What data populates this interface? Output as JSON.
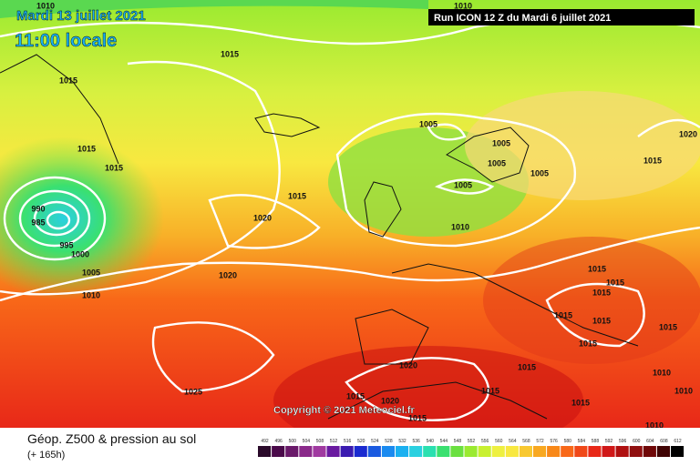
{
  "header": {
    "date": "Mardi 13 juillet 2021",
    "time": "11:00 locale",
    "run": "Run ICON 12 Z du Mardi 6 juillet 2021"
  },
  "copyright": "Copyright © 2021 Meteociel.fr",
  "footer": {
    "title": "Géop. Z500 & pression au sol",
    "lead": "(+ 165h)"
  },
  "isobar_labels": [
    1010,
    1015,
    1015,
    1015,
    1015,
    990,
    985,
    995,
    1000,
    1005,
    1010,
    1020,
    1015,
    1020,
    1005,
    1005,
    1005,
    1005,
    1005,
    1010,
    1010,
    1015,
    1020,
    1015,
    1015,
    1015,
    1015,
    1015,
    1015,
    1015,
    1015,
    1020,
    1015,
    1020,
    1015,
    1015,
    1015,
    1025,
    1010,
    1010,
    1010
  ],
  "colorbar": {
    "values": [
      492,
      496,
      500,
      504,
      508,
      512,
      516,
      520,
      524,
      528,
      532,
      536,
      540,
      544,
      548,
      552,
      556,
      560,
      564,
      568,
      572,
      576,
      580,
      584,
      588,
      592,
      596,
      600,
      604,
      608,
      612
    ],
    "colors": [
      "#2a0a2a",
      "#4a0a4a",
      "#6a1a6a",
      "#8a2a8a",
      "#a03aa0",
      "#6a1aa0",
      "#3a1ab0",
      "#1a2ad0",
      "#1a5ae0",
      "#1a8af0",
      "#1ab0f0",
      "#2ad0e0",
      "#2ae0b0",
      "#3ae070",
      "#6ae040",
      "#9aea30",
      "#c8f030",
      "#eef040",
      "#f8e840",
      "#f8c830",
      "#f8a820",
      "#f88818",
      "#f86818",
      "#f04818",
      "#e82818",
      "#d01818",
      "#b01010",
      "#901010",
      "#700808",
      "#400404",
      "#000000"
    ]
  }
}
